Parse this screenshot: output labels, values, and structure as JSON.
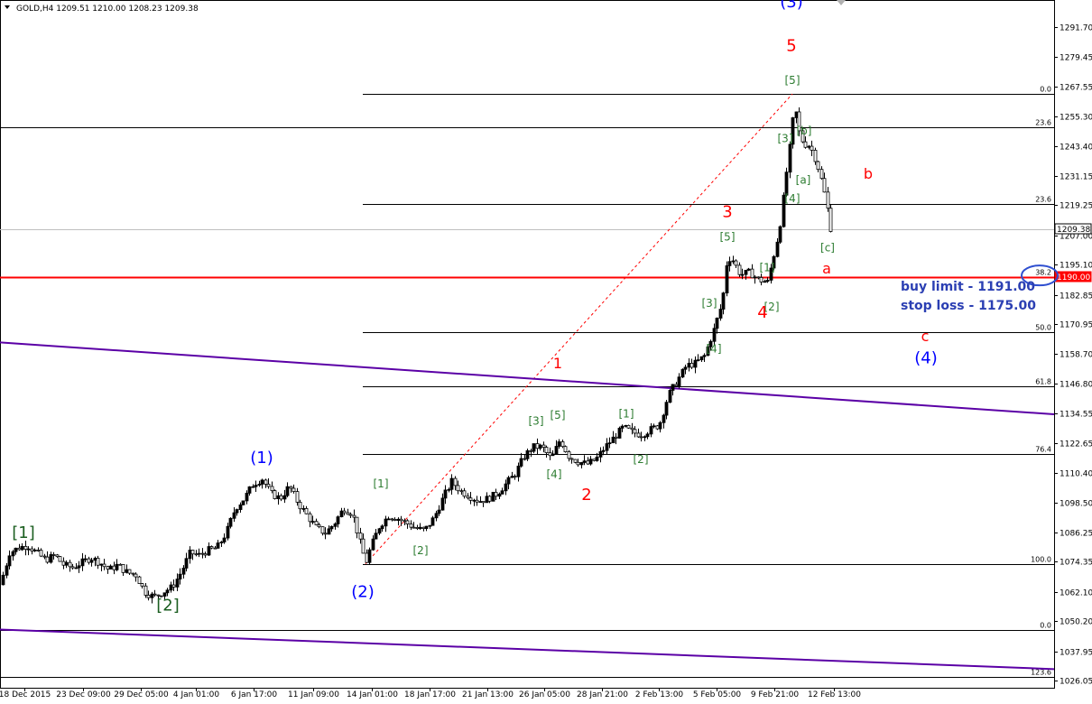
{
  "chart_data": {
    "type": "candlestick",
    "symbol_header": "GOLD,H4  1209.51 1210.00 1208.23 1209.38",
    "x_tick_labels": [
      "18 Dec 2015",
      "23 Dec 09:00",
      "29 Dec 05:00",
      "4 Jan 01:00",
      "6 Jan 17:00",
      "11 Jan 09:00",
      "14 Jan 01:00",
      "18 Jan 17:00",
      "21 Jan 13:00",
      "26 Jan 05:00",
      "28 Jan 21:00",
      "2 Feb 13:00",
      "5 Feb 05:00",
      "9 Feb 21:00",
      "12 Feb 13:00"
    ],
    "y_tick_values": [
      1291.7,
      1279.45,
      1267.55,
      1255.3,
      1243.4,
      1231.15,
      1219.25,
      1207.0,
      1195.1,
      1182.85,
      1170.95,
      1158.7,
      1146.8,
      1134.55,
      1122.65,
      1110.4,
      1098.5,
      1086.25,
      1074.35,
      1062.1,
      1050.2,
      1037.95,
      1026.05
    ],
    "y_tick_labels": [
      "1291.70",
      "1279.45",
      "1267.55",
      "1255.30",
      "1243.40",
      "1231.15",
      "1219.25",
      "1207.00",
      "1195.10",
      "1182.85",
      "1170.95",
      "1158.70",
      "1146.80",
      "1134.55",
      "1122.65",
      "1110.40",
      "1098.50",
      "1086.25",
      "1074.35",
      "1062.10",
      "1050.20",
      "1037.95",
      "1026.05"
    ],
    "ylim": [
      1021,
      1304
    ],
    "current_price": {
      "value": 1209.38,
      "label": "1209.38"
    },
    "red_level": {
      "value": 1190.0,
      "label": "1190.00"
    },
    "fib_levels_upper": [
      {
        "label": "0.0",
        "value": 1264.5
      },
      {
        "label": "23.6",
        "value": 1250.8
      },
      {
        "label": "38.2",
        "value": 1190.0
      },
      {
        "label": "50.0",
        "value": 1167.8
      },
      {
        "label": "61.8",
        "value": 1145.6
      },
      {
        "label": "76.4",
        "value": 1118.0
      },
      {
        "label": "100.0",
        "value": 1073.5
      }
    ],
    "fib_levels_lower": [
      {
        "label": "23.6",
        "value": 1219.7
      },
      {
        "label": "0.0",
        "value": 1046.6
      },
      {
        "label": "123.6",
        "value": 1027.7
      }
    ],
    "trendlines": [
      {
        "name": "upper channel",
        "points": [
          [
            "18 Dec 2015",
            1163.5
          ],
          [
            "12 Feb 13:00+",
            1134.3
          ]
        ]
      },
      {
        "name": "lower channel",
        "points": [
          [
            "18 Dec 2015",
            1046.8
          ],
          [
            "12 Feb 13:00+",
            1030.7
          ]
        ]
      }
    ],
    "price_path": [
      [
        0,
        1065
      ],
      [
        10,
        1078
      ],
      [
        20,
        1080
      ],
      [
        30,
        1081
      ],
      [
        40,
        1078
      ],
      [
        50,
        1075
      ],
      [
        60,
        1077
      ],
      [
        70,
        1073
      ],
      [
        80,
        1072
      ],
      [
        90,
        1074
      ],
      [
        100,
        1076
      ],
      [
        110,
        1074
      ],
      [
        120,
        1071
      ],
      [
        130,
        1073
      ],
      [
        140,
        1070
      ],
      [
        150,
        1069
      ],
      [
        160,
        1062
      ],
      [
        170,
        1060
      ],
      [
        180,
        1062
      ],
      [
        190,
        1064
      ],
      [
        200,
        1070
      ],
      [
        210,
        1078
      ],
      [
        220,
        1077
      ],
      [
        230,
        1079
      ],
      [
        240,
        1080
      ],
      [
        250,
        1086
      ],
      [
        260,
        1096
      ],
      [
        270,
        1100
      ],
      [
        280,
        1106
      ],
      [
        290,
        1108
      ],
      [
        300,
        1102
      ],
      [
        310,
        1100
      ],
      [
        320,
        1105
      ],
      [
        330,
        1098
      ],
      [
        340,
        1093
      ],
      [
        350,
        1088
      ],
      [
        360,
        1086
      ],
      [
        370,
        1090
      ],
      [
        380,
        1096
      ],
      [
        390,
        1094
      ],
      [
        400,
        1080
      ],
      [
        405,
        1074
      ],
      [
        410,
        1080
      ],
      [
        420,
        1089
      ],
      [
        430,
        1093
      ],
      [
        440,
        1092
      ],
      [
        450,
        1090
      ],
      [
        460,
        1088
      ],
      [
        470,
        1087
      ],
      [
        480,
        1092
      ],
      [
        490,
        1100
      ],
      [
        500,
        1107
      ],
      [
        510,
        1103
      ],
      [
        520,
        1101
      ],
      [
        530,
        1099
      ],
      [
        540,
        1100
      ],
      [
        550,
        1102
      ],
      [
        560,
        1106
      ],
      [
        570,
        1110
      ],
      [
        580,
        1117
      ],
      [
        590,
        1121
      ],
      [
        600,
        1121
      ],
      [
        610,
        1116
      ],
      [
        620,
        1124
      ],
      [
        630,
        1117
      ],
      [
        640,
        1115
      ],
      [
        650,
        1114
      ],
      [
        660,
        1116
      ],
      [
        670,
        1121
      ],
      [
        680,
        1125
      ],
      [
        690,
        1129
      ],
      [
        700,
        1127
      ],
      [
        710,
        1126
      ],
      [
        720,
        1128
      ],
      [
        730,
        1130
      ],
      [
        740,
        1142
      ],
      [
        750,
        1148
      ],
      [
        760,
        1154
      ],
      [
        770,
        1155
      ],
      [
        780,
        1158
      ],
      [
        790,
        1168
      ],
      [
        800,
        1180
      ],
      [
        805,
        1197
      ],
      [
        810,
        1198
      ],
      [
        820,
        1191
      ],
      [
        830,
        1192
      ],
      [
        840,
        1189
      ],
      [
        850,
        1188
      ],
      [
        860,
        1204
      ],
      [
        865,
        1214
      ],
      [
        870,
        1230
      ],
      [
        875,
        1244
      ],
      [
        880,
        1260
      ],
      [
        885,
        1249
      ],
      [
        890,
        1244
      ],
      [
        895,
        1244
      ],
      [
        900,
        1241
      ],
      [
        905,
        1236
      ],
      [
        910,
        1229
      ],
      [
        915,
        1221
      ],
      [
        920,
        1210
      ]
    ],
    "wave_labels": [
      {
        "text": "(3)",
        "color": "#0000ff",
        "size": 18,
        "price": 1299.8,
        "xi": 877
      },
      {
        "text": "5",
        "color": "#ff0000",
        "size": 18,
        "price": 1282.0,
        "xi": 877
      },
      {
        "text": "[5]",
        "color": "#2e7d32",
        "size": 12,
        "price": 1268.5,
        "xi": 878
      },
      {
        "text": "[3]",
        "color": "#2e7d32",
        "size": 12,
        "price": 1245.0,
        "xi": 870
      },
      {
        "text": "[b]",
        "color": "#2e7d32",
        "size": 12,
        "price": 1248.0,
        "xi": 891
      },
      {
        "text": "[a]",
        "color": "#2e7d32",
        "size": 12,
        "price": 1228.0,
        "xi": 890
      },
      {
        "text": "[4]",
        "color": "#2e7d32",
        "size": 12,
        "price": 1220.5,
        "xi": 878
      },
      {
        "text": "b",
        "color": "#ff0000",
        "size": 16,
        "price": 1230.0,
        "xi": 962
      },
      {
        "text": "3",
        "color": "#ff0000",
        "size": 18,
        "price": 1214.5,
        "xi": 806
      },
      {
        "text": "[5]",
        "color": "#2e7d32",
        "size": 12,
        "price": 1205.0,
        "xi": 806
      },
      {
        "text": "[c]",
        "color": "#2e7d32",
        "size": 12,
        "price": 1200.5,
        "xi": 917
      },
      {
        "text": "[1]",
        "color": "#2e7d32",
        "size": 12,
        "price": 1192.5,
        "xi": 850
      },
      {
        "text": "a",
        "color": "#ff0000",
        "size": 16,
        "price": 1191.5,
        "xi": 916
      },
      {
        "text": "[2]",
        "color": "#2e7d32",
        "size": 12,
        "price": 1176.5,
        "xi": 855
      },
      {
        "text": "4",
        "color": "#ff0000",
        "size": 18,
        "price": 1173.5,
        "xi": 845
      },
      {
        "text": "[3]",
        "color": "#2e7d32",
        "size": 12,
        "price": 1178.0,
        "xi": 786
      },
      {
        "text": "[4]",
        "color": "#2e7d32",
        "size": 12,
        "price": 1159.5,
        "xi": 791
      },
      {
        "text": "c",
        "color": "#ff0000",
        "size": 16,
        "price": 1164.0,
        "xi": 1025
      },
      {
        "text": "(4)",
        "color": "#0000ff",
        "size": 18,
        "price": 1155.0,
        "xi": 1026
      },
      {
        "text": "1",
        "color": "#ff0000",
        "size": 16,
        "price": 1153.0,
        "xi": 618
      },
      {
        "text": "[3]",
        "color": "#2e7d32",
        "size": 12,
        "price": 1130.0,
        "xi": 594
      },
      {
        "text": "[5]",
        "color": "#2e7d32",
        "size": 12,
        "price": 1132.5,
        "xi": 618
      },
      {
        "text": "[1]",
        "color": "#2e7d32",
        "size": 12,
        "price": 1133.0,
        "xi": 694
      },
      {
        "text": "[4]",
        "color": "#2e7d32",
        "size": 12,
        "price": 1108.5,
        "xi": 614
      },
      {
        "text": "[2]",
        "color": "#2e7d32",
        "size": 12,
        "price": 1114.5,
        "xi": 710
      },
      {
        "text": "2",
        "color": "#ff0000",
        "size": 18,
        "price": 1099.5,
        "xi": 650
      },
      {
        "text": "(1)",
        "color": "#0000ff",
        "size": 18,
        "price": 1114.5,
        "xi": 290
      },
      {
        "text": "[1]",
        "color": "#2e7d32",
        "size": 12,
        "price": 1104.5,
        "xi": 422
      },
      {
        "text": "[2]",
        "color": "#2e7d32",
        "size": 12,
        "price": 1077.5,
        "xi": 466
      },
      {
        "text": "[1]",
        "color": "#1b5e20",
        "size": 18,
        "price": 1084.0,
        "xi": 26
      },
      {
        "text": "[2]",
        "color": "#1b5e20",
        "size": 18,
        "price": 1054.5,
        "xi": 186
      },
      {
        "text": "(2)",
        "color": "#0000ff",
        "size": 18,
        "price": 1060.0,
        "xi": 402
      }
    ]
  },
  "annotations": {
    "buy_limit": "buy limit - 1191.00",
    "stop_loss": "stop loss - 1175.00"
  },
  "colors": {
    "candle_up": "#000000",
    "candle_down": "#ffffff",
    "red_line": "#ff0000",
    "trendline": "#5b00a6",
    "fib_line": "#000000",
    "annotation_blue": "#2b3fb3",
    "circle": "#2f4fd0"
  }
}
